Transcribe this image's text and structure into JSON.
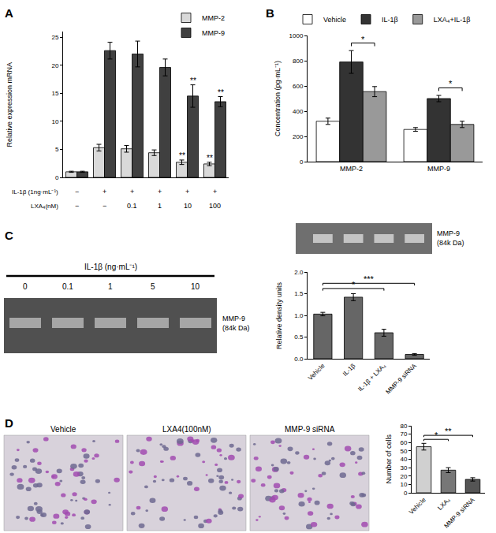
{
  "chart_data": [
    {
      "panel": "A",
      "type": "bar",
      "categories": [
        null,
        null,
        null,
        null,
        null,
        null
      ],
      "series": [
        {
          "name": "MMP-2",
          "color": "#d9d9d9",
          "values": [
            1.0,
            5.3,
            5.1,
            4.4,
            2.7,
            2.4
          ],
          "errors": [
            0.1,
            0.6,
            0.6,
            0.5,
            0.4,
            0.3
          ]
        },
        {
          "name": "MMP-9",
          "color": "#404040",
          "values": [
            1.0,
            22.6,
            22.0,
            19.6,
            14.5,
            13.5
          ],
          "errors": [
            0.1,
            1.5,
            2.3,
            1.5,
            2.0,
            0.9
          ]
        }
      ],
      "y_label": "Relative expression mRNA",
      "ylim": [
        0,
        26
      ],
      "yticks": [
        0,
        5,
        10,
        15,
        20,
        25
      ],
      "tick_labels": "y",
      "legend": "top right",
      "table": [
        {
          "label": "IL-1β (1ng·mL⁻¹)",
          "cells": [
            "−",
            "+",
            "+",
            "+",
            "+",
            "+"
          ]
        },
        {
          "label": "LXA₄(nM)",
          "cells": [
            "−",
            "−",
            "0.1",
            "1",
            "10",
            "100"
          ]
        }
      ],
      "annotations": [
        {
          "text": "**",
          "series": "MMP-2",
          "index": 4
        },
        {
          "text": "**",
          "series": "MMP-2",
          "index": 5
        },
        {
          "text": "**",
          "series": "MMP-9",
          "index": 4
        },
        {
          "text": "**",
          "series": "MMP-9",
          "index": 5
        }
      ]
    },
    {
      "panel": "B",
      "type": "bar",
      "categories": [
        "MMP-2",
        "MMP-9"
      ],
      "series": [
        {
          "name": "Vehicle",
          "color": "#ffffff",
          "values": [
            320,
            255
          ],
          "errors": [
            25,
            15
          ]
        },
        {
          "name": "IL-1β",
          "color": "#333333",
          "values": [
            790,
            500
          ],
          "errors": [
            90,
            25
          ]
        },
        {
          "name": "LXA₄+IL-1β",
          "color": "#999999",
          "values": [
            555,
            295
          ],
          "errors": [
            40,
            25
          ]
        }
      ],
      "y_label": "Concentration (pg·mL⁻¹)",
      "ylim": [
        0,
        1000
      ],
      "yticks": [
        0,
        200,
        400,
        600,
        800,
        1000
      ],
      "legend": "top",
      "annotations": [
        {
          "text": "*",
          "index": 0,
          "between": [
            "IL-1β",
            "LXA₄+IL-1β"
          ]
        },
        {
          "text": "*",
          "index": 1,
          "between": [
            "IL-1β",
            "LXA₄+IL-1β"
          ]
        }
      ]
    },
    {
      "panel": "C",
      "type": "bar",
      "categories": [
        "Vehicle",
        "IL-1β",
        "IL-1β + LXA₄",
        "MMP-9 siRNA"
      ],
      "values": [
        1.03,
        1.42,
        0.6,
        0.1
      ],
      "errors": [
        0.04,
        0.08,
        0.08,
        0.02
      ],
      "color": "#666666",
      "y_label": "Relative density units",
      "ylim": [
        0,
        2
      ],
      "yticks": [
        {
          "value": 0,
          "label": "0.0"
        },
        {
          "value": 0.5,
          "label": "0.5"
        },
        {
          "value": 1,
          "label": "1.0"
        },
        {
          "value": 1.5,
          "label": "1.5"
        },
        {
          "value": 2,
          "label": "2.0"
        }
      ],
      "gel_label": [
        "MMP-9",
        "(84k Da)"
      ],
      "annotations": [
        {
          "text": "*",
          "between": [
            "Vehicle",
            "IL-1β + LXA₄"
          ]
        },
        {
          "text": "***",
          "between": [
            "Vehicle",
            "MMP-9 siRNA"
          ]
        }
      ]
    },
    {
      "panel": "D",
      "type": "bar",
      "categories": [
        "Vehicle",
        "LXA₄",
        "MMP-9 siRNA"
      ],
      "values": [
        55,
        27,
        16
      ],
      "errors": [
        4,
        3,
        2
      ],
      "colors": [
        "#d0d0d0",
        "#777777",
        "#555555"
      ],
      "y_label": "Number of cells",
      "ylim": [
        0,
        80
      ],
      "yticks": [
        0,
        10,
        20,
        30,
        40,
        50,
        60,
        70,
        80
      ],
      "annotations": [
        {
          "text": "*",
          "between": [
            "Vehicle",
            "LXA₄"
          ]
        },
        {
          "text": "**",
          "between": [
            "Vehicle",
            "MMP-9 siRNA"
          ]
        }
      ]
    }
  ],
  "gel": {
    "header": "IL-1β (ng·mL⁻¹)",
    "lanes": [
      "0",
      "0.1",
      "1",
      "5",
      "10"
    ],
    "band_label": [
      "MMP-9",
      "(84k Da)"
    ]
  },
  "micrographs": {
    "titles": [
      "Vehicle",
      "LXA4(100nM)",
      "MMP-9 siRNA"
    ]
  }
}
